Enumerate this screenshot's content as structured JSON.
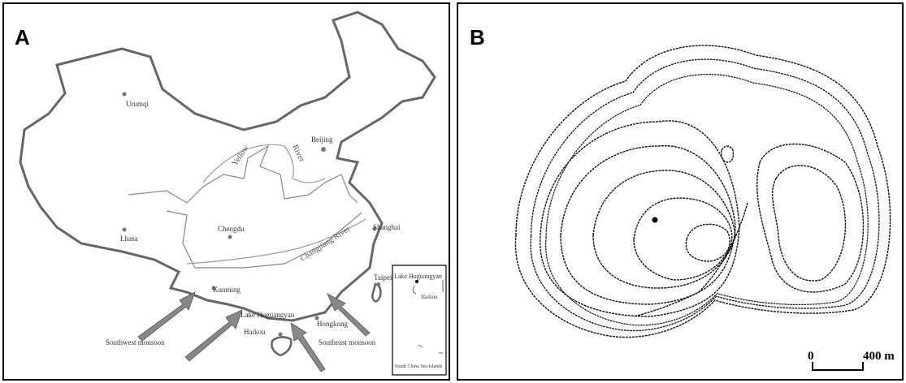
{
  "panel_a": {
    "label": "A",
    "places": [
      "Urumqi",
      "Beijing",
      "Lhasa",
      "Chengdu",
      "Shanghai",
      "Kunming",
      "Lake Huguangyan",
      "Haikou",
      "Hongkong",
      "Taipei"
    ],
    "rivers": [
      "Yellow",
      "River",
      "Changjiang River"
    ],
    "monsoons": [
      "Southwest monsoon",
      "Southeast monsoon"
    ],
    "inset": {
      "lake": "Lake Huguangyan",
      "city": "Haikou",
      "caption": "South China Sea Islands"
    }
  },
  "panel_b": {
    "label": "B",
    "scale": {
      "start": "0",
      "end": "400 m"
    }
  }
}
